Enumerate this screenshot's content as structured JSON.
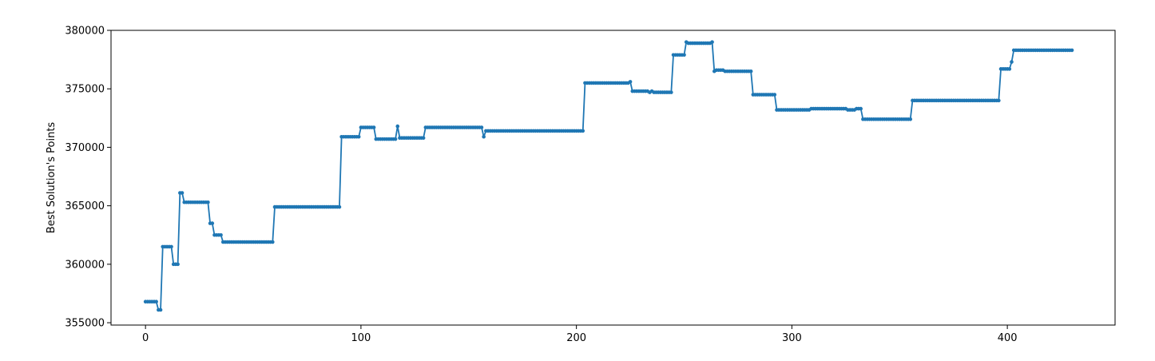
{
  "chart_data": {
    "type": "line",
    "title": "",
    "xlabel": "",
    "ylabel": "Best Solution's Points",
    "xlim": [
      -16,
      450
    ],
    "ylim": [
      354800,
      380000
    ],
    "xticks": [
      0,
      100,
      200,
      300,
      400
    ],
    "yticks": [
      355000,
      360000,
      365000,
      370000,
      375000,
      380000
    ],
    "grid": false,
    "legend": "none",
    "series": [
      {
        "color": "#1f77b4",
        "marker": "dot",
        "steps": [
          [
            0,
            356800
          ],
          [
            5,
            356800
          ],
          [
            6,
            356100
          ],
          [
            7,
            356100
          ],
          [
            8,
            361500
          ],
          [
            12,
            361500
          ],
          [
            13,
            360000
          ],
          [
            15,
            360000
          ],
          [
            16,
            366100
          ],
          [
            17,
            366100
          ],
          [
            18,
            365300
          ],
          [
            29,
            365300
          ],
          [
            30,
            363500
          ],
          [
            31,
            363500
          ],
          [
            32,
            362500
          ],
          [
            35,
            362500
          ],
          [
            36,
            361900
          ],
          [
            59,
            361900
          ],
          [
            60,
            364900
          ],
          [
            90,
            364900
          ],
          [
            91,
            370900
          ],
          [
            99,
            370900
          ],
          [
            100,
            371700
          ],
          [
            106,
            371700
          ],
          [
            107,
            370700
          ],
          [
            116,
            370700
          ],
          [
            117,
            371800
          ],
          [
            118,
            370800
          ],
          [
            129,
            370800
          ],
          [
            130,
            371700
          ],
          [
            156,
            371700
          ],
          [
            157,
            370900
          ],
          [
            158,
            371400
          ],
          [
            203,
            371400
          ],
          [
            204,
            375500
          ],
          [
            224,
            375500
          ],
          [
            225,
            375600
          ],
          [
            226,
            374800
          ],
          [
            233,
            374800
          ],
          [
            234,
            374700
          ],
          [
            235,
            374800
          ],
          [
            236,
            374700
          ],
          [
            244,
            374700
          ],
          [
            245,
            377900
          ],
          [
            250,
            377900
          ],
          [
            251,
            379000
          ],
          [
            252,
            378900
          ],
          [
            262,
            378900
          ],
          [
            263,
            379000
          ],
          [
            264,
            376500
          ],
          [
            265,
            376600
          ],
          [
            268,
            376600
          ],
          [
            269,
            376500
          ],
          [
            281,
            376500
          ],
          [
            282,
            374500
          ],
          [
            292,
            374500
          ],
          [
            293,
            373200
          ],
          [
            308,
            373200
          ],
          [
            309,
            373300
          ],
          [
            325,
            373300
          ],
          [
            326,
            373200
          ],
          [
            329,
            373200
          ],
          [
            330,
            373300
          ],
          [
            332,
            373300
          ],
          [
            333,
            372400
          ],
          [
            355,
            372400
          ],
          [
            356,
            374000
          ],
          [
            396,
            374000
          ],
          [
            397,
            376700
          ],
          [
            401,
            376700
          ],
          [
            402,
            377300
          ],
          [
            403,
            378300
          ],
          [
            430,
            378300
          ]
        ]
      }
    ]
  }
}
